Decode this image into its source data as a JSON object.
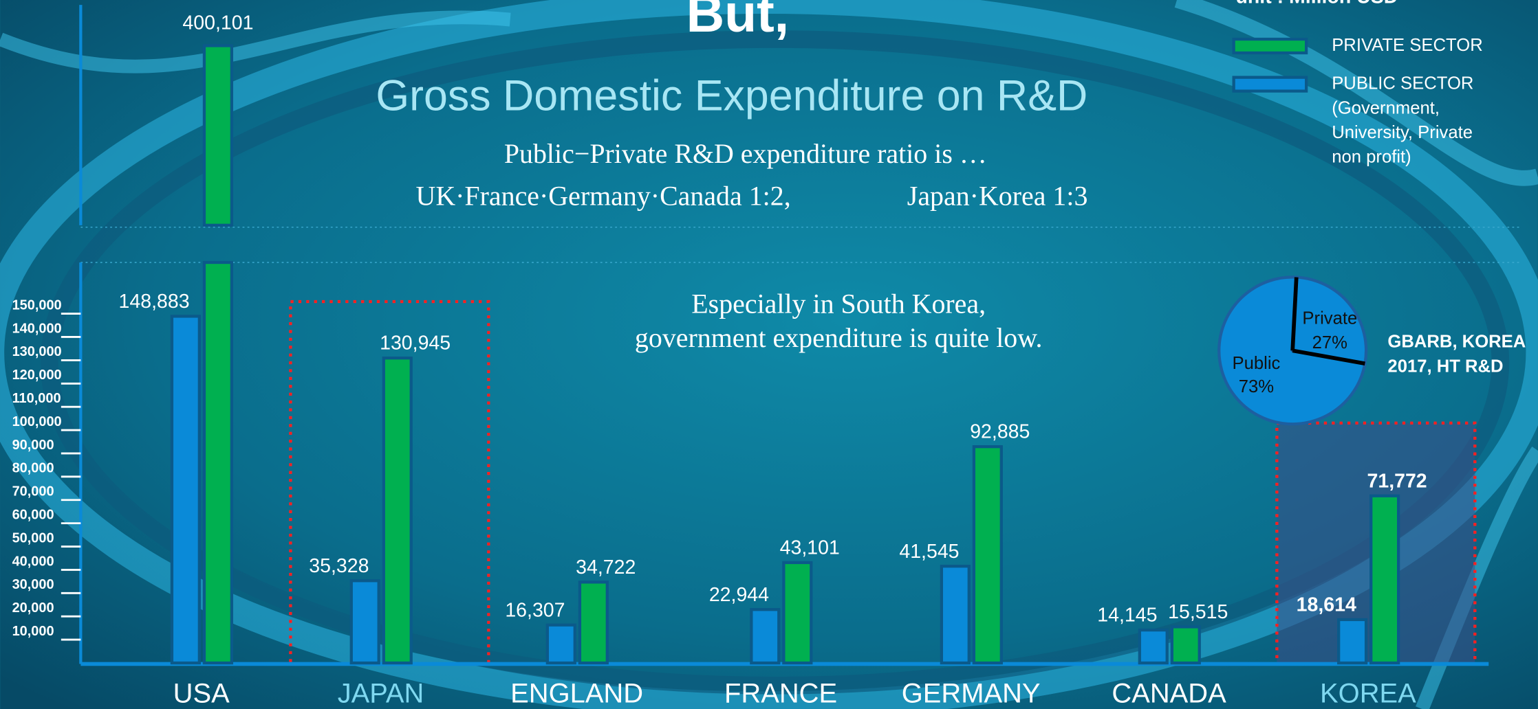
{
  "chart_data": {
    "type": "bar",
    "title": "But,",
    "subtitle": "Gross Domestic Expenditure on R&D",
    "notes": [
      "Public−Private R&D expenditure ratio is …",
      "UK·France·Germany·Canada 1:2,",
      "Japan·Korea 1:3"
    ],
    "unit": "unit : Million USD",
    "annotation": [
      "Especially in South Korea,",
      "government expenditure is quite low."
    ],
    "categories": [
      "USA",
      "JAPAN",
      "ENGLAND",
      "FRANCE",
      "GERMANY",
      "CANADA",
      "KOREA"
    ],
    "highlight": [
      1,
      6
    ],
    "series": [
      {
        "name": "PUBLIC SECTOR (Government, University, Private non profit)",
        "color": "#0a8ad8",
        "values": [
          148883,
          35328,
          16307,
          22944,
          41545,
          14145,
          18614
        ],
        "value_labels": [
          "148,883",
          "35,328",
          "16,307",
          "22,944",
          "41,545",
          "14,145",
          "18,614"
        ]
      },
      {
        "name": "PRIVATE SECTOR",
        "color": "#00b050",
        "values": [
          400101,
          130945,
          34722,
          43101,
          92885,
          15515,
          71772
        ],
        "value_labels": [
          "400,101",
          "130,945",
          "34,722",
          "43,101",
          "92,885",
          "15,515",
          "71,772"
        ]
      }
    ],
    "ylim": [
      0,
      172000
    ],
    "upper_ylim": [
      325000,
      402000
    ],
    "yticks": [
      {
        "value": 10000,
        "label": "10,000"
      },
      {
        "value": 20000,
        "label": "20,000"
      },
      {
        "value": 30000,
        "label": "30,000"
      },
      {
        "value": 40000,
        "label": "40,000"
      },
      {
        "value": 50000,
        "label": "50,000"
      },
      {
        "value": 60000,
        "label": "60,000"
      },
      {
        "value": 70000,
        "label": "70,000"
      },
      {
        "value": 80000,
        "label": "80,000"
      },
      {
        "value": 90000,
        "label": "90,000"
      },
      {
        "value": 100000,
        "label": "100,000"
      },
      {
        "value": 110000,
        "label": "110,000"
      },
      {
        "value": 120000,
        "label": "120,000"
      },
      {
        "value": 130000,
        "label": "130,000"
      },
      {
        "value": 140000,
        "label": "140,000"
      },
      {
        "value": 150000,
        "label": "150,000"
      }
    ],
    "pie": {
      "type": "pie",
      "categories": [
        "Private",
        "Public"
      ],
      "values": [
        27,
        73
      ],
      "value_labels": [
        "27%",
        "73%"
      ],
      "color": "#0a8ad8",
      "source": [
        "GBARB, KOREA",
        "2017, HT R&D"
      ]
    }
  }
}
